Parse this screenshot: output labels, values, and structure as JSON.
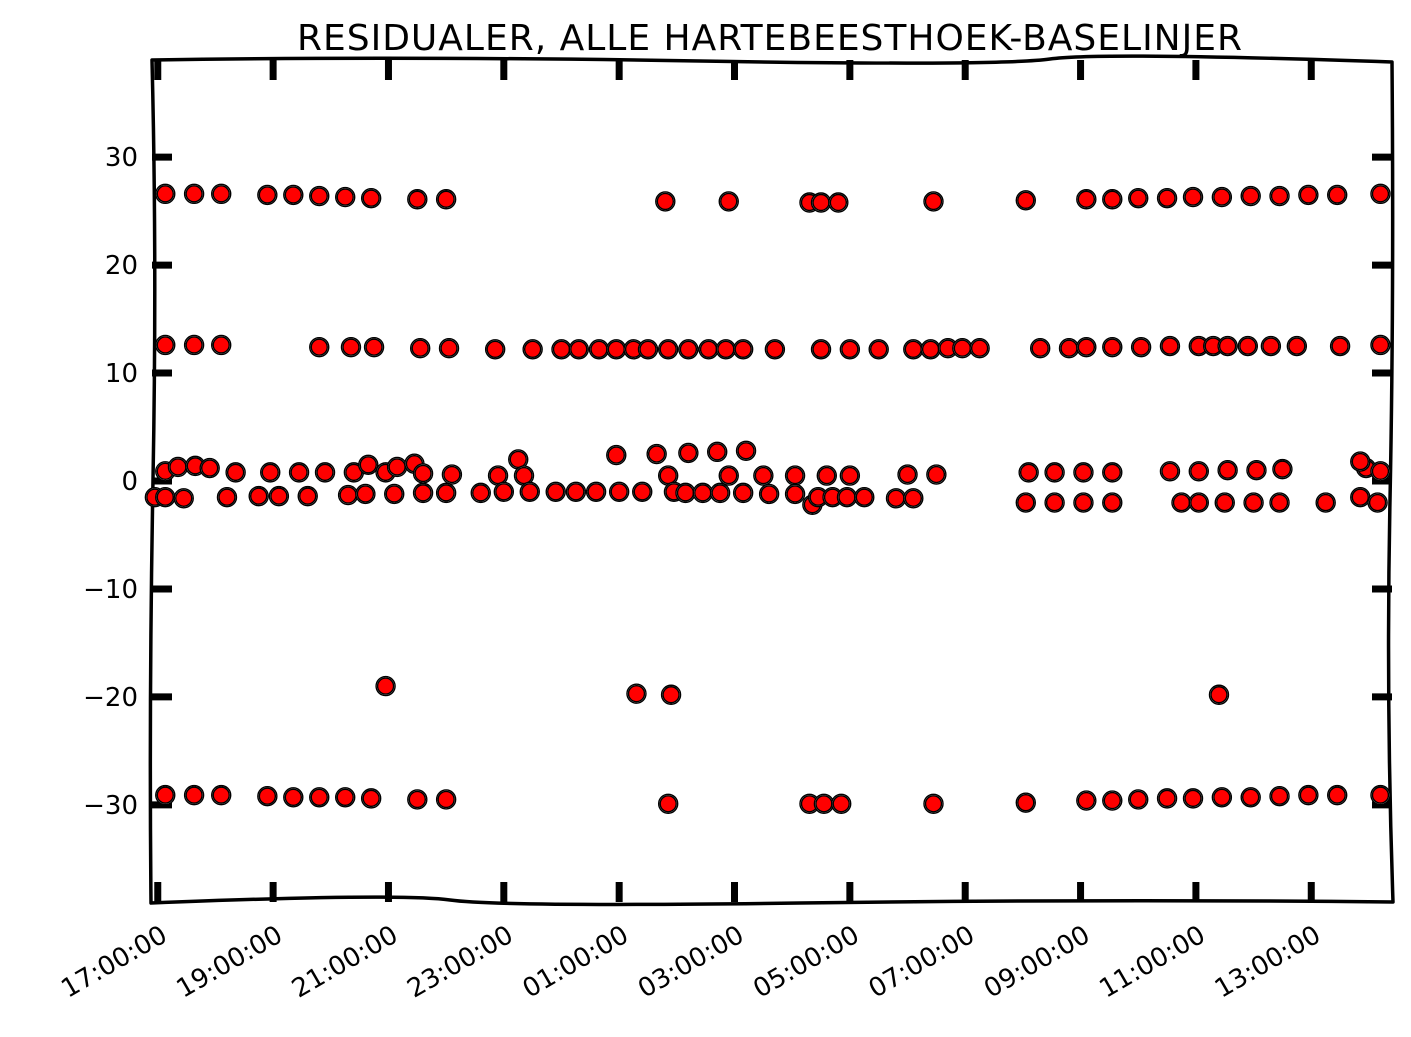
{
  "chart_data": {
    "type": "scatter",
    "title": "RESIDUALER, ALLE HARTEBEESTHOEK-BASELINJER",
    "xlabel": "",
    "ylabel": "",
    "x_unit": "hours since 17:00:00",
    "xlim": [
      -0.1,
      21.4
    ],
    "ylim": [
      -39,
      39
    ],
    "yticks": [
      -30,
      -20,
      -10,
      0,
      10,
      20,
      30
    ],
    "ytick_labels": [
      "−30",
      "−20",
      "−10",
      "0",
      "10",
      "20",
      "30"
    ],
    "xticks": [
      0,
      2,
      4,
      6,
      8,
      10,
      12,
      14,
      16,
      18,
      20
    ],
    "xtick_labels": [
      "17:00:00",
      "19:00:00",
      "21:00:00",
      "23:00:00",
      "01:00:00",
      "03:00:00",
      "05:00:00",
      "07:00:00",
      "09:00:00",
      "11:00:00",
      "13:00:00"
    ],
    "grid": false,
    "legend": "none",
    "marker_color": "#ff0000",
    "marker_edge": "#000000",
    "series": [
      {
        "values": [
          [
            0.13,
            26.6
          ],
          [
            0.63,
            26.6
          ],
          [
            1.1,
            26.6
          ],
          [
            1.9,
            26.5
          ],
          [
            2.35,
            26.5
          ],
          [
            2.8,
            26.4
          ],
          [
            3.25,
            26.3
          ],
          [
            3.7,
            26.2
          ],
          [
            4.5,
            26.1
          ],
          [
            5.0,
            26.1
          ],
          [
            8.8,
            25.9
          ],
          [
            9.9,
            25.9
          ],
          [
            11.3,
            25.8
          ],
          [
            11.5,
            25.8
          ],
          [
            11.8,
            25.8
          ],
          [
            13.45,
            25.9
          ],
          [
            15.05,
            26.0
          ],
          [
            16.1,
            26.1
          ],
          [
            16.55,
            26.1
          ],
          [
            17.0,
            26.2
          ],
          [
            17.5,
            26.2
          ],
          [
            17.95,
            26.3
          ],
          [
            18.45,
            26.3
          ],
          [
            18.95,
            26.4
          ],
          [
            19.45,
            26.4
          ],
          [
            19.95,
            26.5
          ],
          [
            20.45,
            26.5
          ],
          [
            21.2,
            26.6
          ],
          [
            0.13,
            12.6
          ],
          [
            0.63,
            12.6
          ],
          [
            1.1,
            12.6
          ],
          [
            2.8,
            12.4
          ],
          [
            3.35,
            12.4
          ],
          [
            3.75,
            12.4
          ],
          [
            4.55,
            12.3
          ],
          [
            5.05,
            12.3
          ],
          [
            5.85,
            12.2
          ],
          [
            6.5,
            12.2
          ],
          [
            7.0,
            12.2
          ],
          [
            7.3,
            12.2
          ],
          [
            7.65,
            12.2
          ],
          [
            7.95,
            12.2
          ],
          [
            8.25,
            12.2
          ],
          [
            8.5,
            12.2
          ],
          [
            8.85,
            12.2
          ],
          [
            9.2,
            12.2
          ],
          [
            9.55,
            12.2
          ],
          [
            9.85,
            12.2
          ],
          [
            10.15,
            12.2
          ],
          [
            10.7,
            12.2
          ],
          [
            11.5,
            12.2
          ],
          [
            12.0,
            12.2
          ],
          [
            12.5,
            12.2
          ],
          [
            13.1,
            12.2
          ],
          [
            13.4,
            12.2
          ],
          [
            13.7,
            12.3
          ],
          [
            13.95,
            12.3
          ],
          [
            14.25,
            12.3
          ],
          [
            15.3,
            12.3
          ],
          [
            15.8,
            12.3
          ],
          [
            16.1,
            12.4
          ],
          [
            16.55,
            12.4
          ],
          [
            17.05,
            12.4
          ],
          [
            17.55,
            12.5
          ],
          [
            18.05,
            12.5
          ],
          [
            18.3,
            12.5
          ],
          [
            18.55,
            12.5
          ],
          [
            18.9,
            12.5
          ],
          [
            19.3,
            12.5
          ],
          [
            19.75,
            12.5
          ],
          [
            20.5,
            12.5
          ],
          [
            21.2,
            12.6
          ],
          [
            0.13,
            0.9
          ],
          [
            0.35,
            1.3
          ],
          [
            0.65,
            1.4
          ],
          [
            0.9,
            1.2
          ],
          [
            1.35,
            0.8
          ],
          [
            1.95,
            0.8
          ],
          [
            2.45,
            0.8
          ],
          [
            2.9,
            0.8
          ],
          [
            3.4,
            0.8
          ],
          [
            3.65,
            1.5
          ],
          [
            3.95,
            0.8
          ],
          [
            4.15,
            1.3
          ],
          [
            4.45,
            1.6
          ],
          [
            4.6,
            0.7
          ],
          [
            5.1,
            0.6
          ],
          [
            5.9,
            0.5
          ],
          [
            6.25,
            2.0
          ],
          [
            6.35,
            0.5
          ],
          [
            7.95,
            2.4
          ],
          [
            8.65,
            2.5
          ],
          [
            8.85,
            0.5
          ],
          [
            9.2,
            2.6
          ],
          [
            9.7,
            2.7
          ],
          [
            9.9,
            0.5
          ],
          [
            10.2,
            2.8
          ],
          [
            10.5,
            0.5
          ],
          [
            11.05,
            0.5
          ],
          [
            11.6,
            0.5
          ],
          [
            12.0,
            0.5
          ],
          [
            13.0,
            0.6
          ],
          [
            13.5,
            0.6
          ],
          [
            15.1,
            0.8
          ],
          [
            15.55,
            0.8
          ],
          [
            16.05,
            0.8
          ],
          [
            16.55,
            0.8
          ],
          [
            17.55,
            0.9
          ],
          [
            18.05,
            0.9
          ],
          [
            18.55,
            1.0
          ],
          [
            19.05,
            1.0
          ],
          [
            19.5,
            1.1
          ],
          [
            20.95,
            1.2
          ],
          [
            21.2,
            0.9
          ],
          [
            20.85,
            1.8
          ],
          [
            -0.05,
            -1.5
          ],
          [
            0.13,
            -1.5
          ],
          [
            0.45,
            -1.6
          ],
          [
            1.2,
            -1.5
          ],
          [
            1.75,
            -1.4
          ],
          [
            2.1,
            -1.4
          ],
          [
            2.6,
            -1.4
          ],
          [
            3.3,
            -1.3
          ],
          [
            3.6,
            -1.2
          ],
          [
            4.1,
            -1.2
          ],
          [
            4.6,
            -1.1
          ],
          [
            5.0,
            -1.1
          ],
          [
            5.6,
            -1.1
          ],
          [
            6.0,
            -1.0
          ],
          [
            6.45,
            -1.0
          ],
          [
            6.9,
            -1.0
          ],
          [
            7.25,
            -1.0
          ],
          [
            7.6,
            -1.0
          ],
          [
            8.0,
            -1.0
          ],
          [
            8.4,
            -1.0
          ],
          [
            8.95,
            -1.0
          ],
          [
            9.15,
            -1.1
          ],
          [
            9.45,
            -1.1
          ],
          [
            9.75,
            -1.1
          ],
          [
            10.15,
            -1.1
          ],
          [
            10.6,
            -1.2
          ],
          [
            11.05,
            -1.2
          ],
          [
            11.35,
            -2.2
          ],
          [
            11.45,
            -1.5
          ],
          [
            11.7,
            -1.5
          ],
          [
            11.95,
            -1.5
          ],
          [
            12.25,
            -1.5
          ],
          [
            12.8,
            -1.6
          ],
          [
            13.1,
            -1.6
          ],
          [
            15.05,
            -2.0
          ],
          [
            15.55,
            -2.0
          ],
          [
            16.05,
            -2.0
          ],
          [
            16.55,
            -2.0
          ],
          [
            17.75,
            -2.0
          ],
          [
            18.05,
            -2.0
          ],
          [
            18.5,
            -2.0
          ],
          [
            19.0,
            -2.0
          ],
          [
            19.45,
            -2.0
          ],
          [
            20.25,
            -2.0
          ],
          [
            20.85,
            -1.5
          ],
          [
            21.15,
            -2.0
          ],
          [
            3.95,
            -19.0
          ],
          [
            8.3,
            -19.7
          ],
          [
            8.9,
            -19.8
          ],
          [
            18.4,
            -19.8
          ],
          [
            0.13,
            -29.1
          ],
          [
            0.63,
            -29.1
          ],
          [
            1.1,
            -29.1
          ],
          [
            1.9,
            -29.2
          ],
          [
            2.35,
            -29.3
          ],
          [
            2.8,
            -29.3
          ],
          [
            3.25,
            -29.3
          ],
          [
            3.7,
            -29.4
          ],
          [
            4.5,
            -29.5
          ],
          [
            5.0,
            -29.5
          ],
          [
            8.85,
            -29.9
          ],
          [
            11.3,
            -29.9
          ],
          [
            11.55,
            -29.9
          ],
          [
            11.85,
            -29.9
          ],
          [
            13.45,
            -29.9
          ],
          [
            15.05,
            -29.8
          ],
          [
            16.1,
            -29.6
          ],
          [
            16.55,
            -29.6
          ],
          [
            17.0,
            -29.5
          ],
          [
            17.5,
            -29.4
          ],
          [
            17.95,
            -29.4
          ],
          [
            18.45,
            -29.3
          ],
          [
            18.95,
            -29.3
          ],
          [
            19.45,
            -29.2
          ],
          [
            19.95,
            -29.1
          ],
          [
            20.45,
            -29.1
          ],
          [
            21.2,
            -29.1
          ]
        ]
      }
    ]
  }
}
